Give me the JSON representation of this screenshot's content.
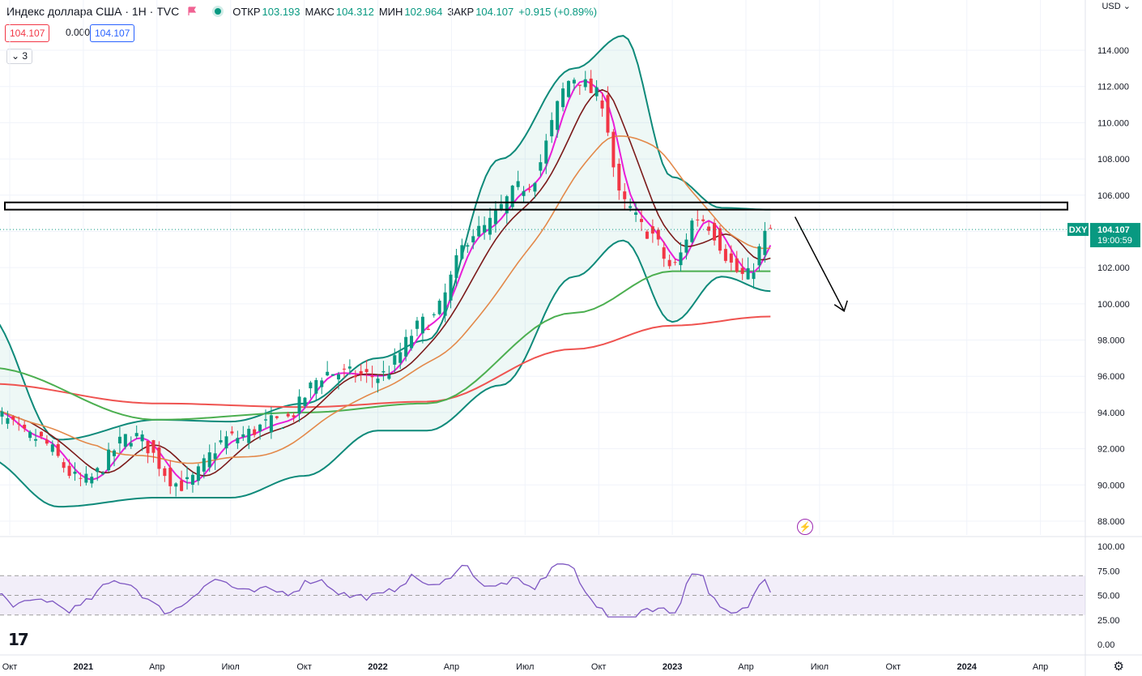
{
  "header": {
    "title": "Индекс доллара США · 1Н · TVC",
    "open_label": "ОТКР",
    "open": "103.193",
    "high_label": "МАКС",
    "high": "104.312",
    "low_label": "МИН",
    "low": "102.964",
    "close_label": "ЗАКР",
    "close": "104.107",
    "change": "+0.915 (+0.89%)",
    "bid": "104.107",
    "spread": "0.000",
    "ask": "104.107",
    "indicators_count": "3",
    "currency": "USD"
  },
  "price_tag": {
    "symbol": "DXY",
    "price": "104.107",
    "countdown": "19:00:59"
  },
  "colors": {
    "up": "#089981",
    "down": "#f23645",
    "bb": "#0e8a7a",
    "ma_fast": "#e91ed8",
    "ma_mid": "#7b1a1a",
    "ma_50": "#e3894a",
    "ma_100": "#4caf50",
    "ma_200": "#ef5350",
    "rsi": "#7e57c2"
  },
  "chart_data": {
    "type": "line",
    "title": "Индекс доллара США · 1Н · TVC",
    "y_axis": {
      "range": [
        87,
        115.4
      ],
      "ticks": [
        "88.000",
        "90.000",
        "92.000",
        "94.000",
        "96.000",
        "98.000",
        "100.000",
        "102.000",
        "104.000",
        "106.000",
        "108.000",
        "110.000",
        "112.000",
        "114.000"
      ]
    },
    "x_axis": {
      "ticks": [
        "Окт",
        "2021",
        "Апр",
        "Июл",
        "Окт",
        "2022",
        "Апр",
        "Июл",
        "Окт",
        "2023",
        "Апр",
        "Июл",
        "Окт",
        "2024",
        "Апр"
      ]
    },
    "series": [
      {
        "name": "Bollinger upper",
        "x": [
          "2020-09",
          "2020-12",
          "2021-04",
          "2021-07",
          "2021-10",
          "2022-01",
          "2022-03",
          "2022-06",
          "2022-09",
          "2022-11",
          "2023-01",
          "2023-03",
          "2023-05"
        ],
        "values": [
          99.5,
          92.5,
          93.6,
          93.5,
          94.5,
          97.0,
          98.0,
          108.0,
          113.0,
          114.8,
          107.0,
          105.3,
          105.2
        ]
      },
      {
        "name": "Bollinger lower",
        "x": [
          "2020-09",
          "2020-12",
          "2021-04",
          "2021-07",
          "2021-10",
          "2022-01",
          "2022-03",
          "2022-06",
          "2022-09",
          "2022-11",
          "2023-01",
          "2023-03",
          "2023-05"
        ],
        "values": [
          91.5,
          88.8,
          89.3,
          89.3,
          90.5,
          93.0,
          93.0,
          95.5,
          101.5,
          103.5,
          99.0,
          101.5,
          100.7
        ]
      },
      {
        "name": "MA 200",
        "x": [
          "2020-09",
          "2021-04",
          "2021-10",
          "2022-03",
          "2022-09",
          "2023-01",
          "2023-05"
        ],
        "values": [
          95.6,
          94.5,
          94.3,
          94.6,
          97.5,
          98.8,
          99.3
        ]
      },
      {
        "name": "MA 100",
        "x": [
          "2020-09",
          "2021-04",
          "2021-10",
          "2022-03",
          "2022-09",
          "2023-01",
          "2023-05"
        ],
        "values": [
          96.5,
          93.6,
          94.0,
          94.5,
          99.5,
          101.8,
          101.8
        ]
      }
    ],
    "last_price": 104.107,
    "resistance_zone": [
      105.2,
      105.6
    ],
    "forecast_arrow": {
      "from": [
        "2023-06",
        104.8
      ],
      "to": [
        "2023-08",
        99.6
      ]
    },
    "rsi": {
      "range": [
        0,
        100
      ],
      "ticks": [
        "0.00",
        "25.00",
        "50.00",
        "75.00",
        "100.00"
      ],
      "upper_band": 70,
      "lower_band": 30,
      "last": 53
    },
    "grid": true,
    "legend": "top-left"
  }
}
